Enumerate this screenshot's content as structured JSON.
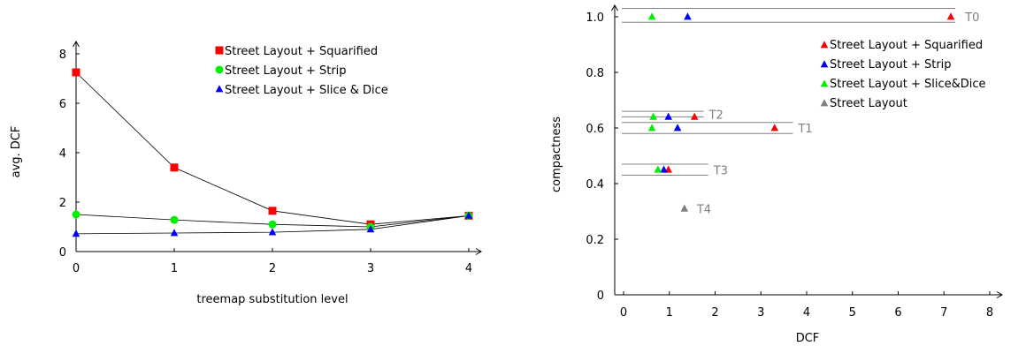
{
  "colors": {
    "squarified": "#ff0000",
    "strip": "#0000ff",
    "slice": "#00ee00",
    "street": "#808080",
    "line": "#000000",
    "ref_line": "#808080",
    "axis": "#000000"
  },
  "chart_data": [
    {
      "type": "line",
      "xlabel": "treemap substitution level",
      "ylabel": "avg. DCF",
      "x": [
        0,
        1,
        2,
        3,
        4
      ],
      "xticks": [
        "0",
        "1",
        "2",
        "3",
        "4"
      ],
      "yticks": [
        "0",
        "2",
        "4",
        "6",
        "8"
      ],
      "xlim": [
        0,
        4
      ],
      "ylim": [
        0,
        8
      ],
      "legend_position": "top-right",
      "series": [
        {
          "name": "Street Layout + Squarified",
          "marker": "square",
          "color_key": "squarified",
          "values": [
            7.25,
            3.4,
            1.65,
            1.1,
            1.45
          ]
        },
        {
          "name": "Street Layout + Strip",
          "marker": "circle",
          "color_key": "slice",
          "values": [
            1.5,
            1.28,
            1.1,
            1.0,
            1.45
          ]
        },
        {
          "name": "Street Layout + Slice & Dice",
          "marker": "triangle",
          "color_key": "strip",
          "values": [
            0.72,
            0.75,
            0.78,
            0.9,
            1.45
          ]
        }
      ]
    },
    {
      "type": "scatter",
      "xlabel": "DCF",
      "ylabel": "compactness",
      "xticks": [
        "0",
        "1",
        "2",
        "3",
        "4",
        "5",
        "6",
        "7",
        "8"
      ],
      "yticks": [
        "0",
        "0.2",
        "0.4",
        "0.6",
        "0.8",
        "1.0"
      ],
      "xlim": [
        0,
        8
      ],
      "ylim": [
        0,
        1.0
      ],
      "legend_position": "top-right",
      "series": [
        {
          "name": "Street Layout + Squarified",
          "marker": "triangle",
          "color_key": "squarified",
          "points": [
            [
              7.15,
              1.0
            ],
            [
              1.55,
              0.64
            ],
            [
              3.3,
              0.6
            ],
            [
              0.98,
              0.45
            ]
          ]
        },
        {
          "name": "Street Layout + Strip",
          "marker": "triangle",
          "color_key": "strip",
          "points": [
            [
              1.4,
              1.0
            ],
            [
              0.98,
              0.64
            ],
            [
              1.18,
              0.6
            ],
            [
              0.88,
              0.45
            ]
          ]
        },
        {
          "name": "Street Layout + Slice&Dice",
          "marker": "triangle",
          "color_key": "slice",
          "points": [
            [
              0.62,
              1.0
            ],
            [
              0.65,
              0.64
            ],
            [
              0.62,
              0.6
            ],
            [
              0.75,
              0.45
            ]
          ]
        },
        {
          "name": "Street Layout",
          "marker": "triangle",
          "color_key": "street",
          "points": [
            [
              1.33,
              0.31
            ]
          ]
        }
      ],
      "groups": [
        {
          "label": "T0",
          "y_top": 1.03,
          "y_bottom": 0.98,
          "x_end": 7.25
        },
        {
          "label": "T2",
          "y_top": 0.66,
          "y_bottom": 0.64,
          "x_end": 1.75
        },
        {
          "label": "T1",
          "y_top": 0.62,
          "y_bottom": 0.58,
          "x_end": 3.7
        },
        {
          "label": "T3",
          "y_top": 0.47,
          "y_bottom": 0.43,
          "x_end": 1.85
        },
        {
          "label": "T4",
          "y_top": null,
          "y_bottom": null,
          "x_end": null
        }
      ]
    }
  ]
}
